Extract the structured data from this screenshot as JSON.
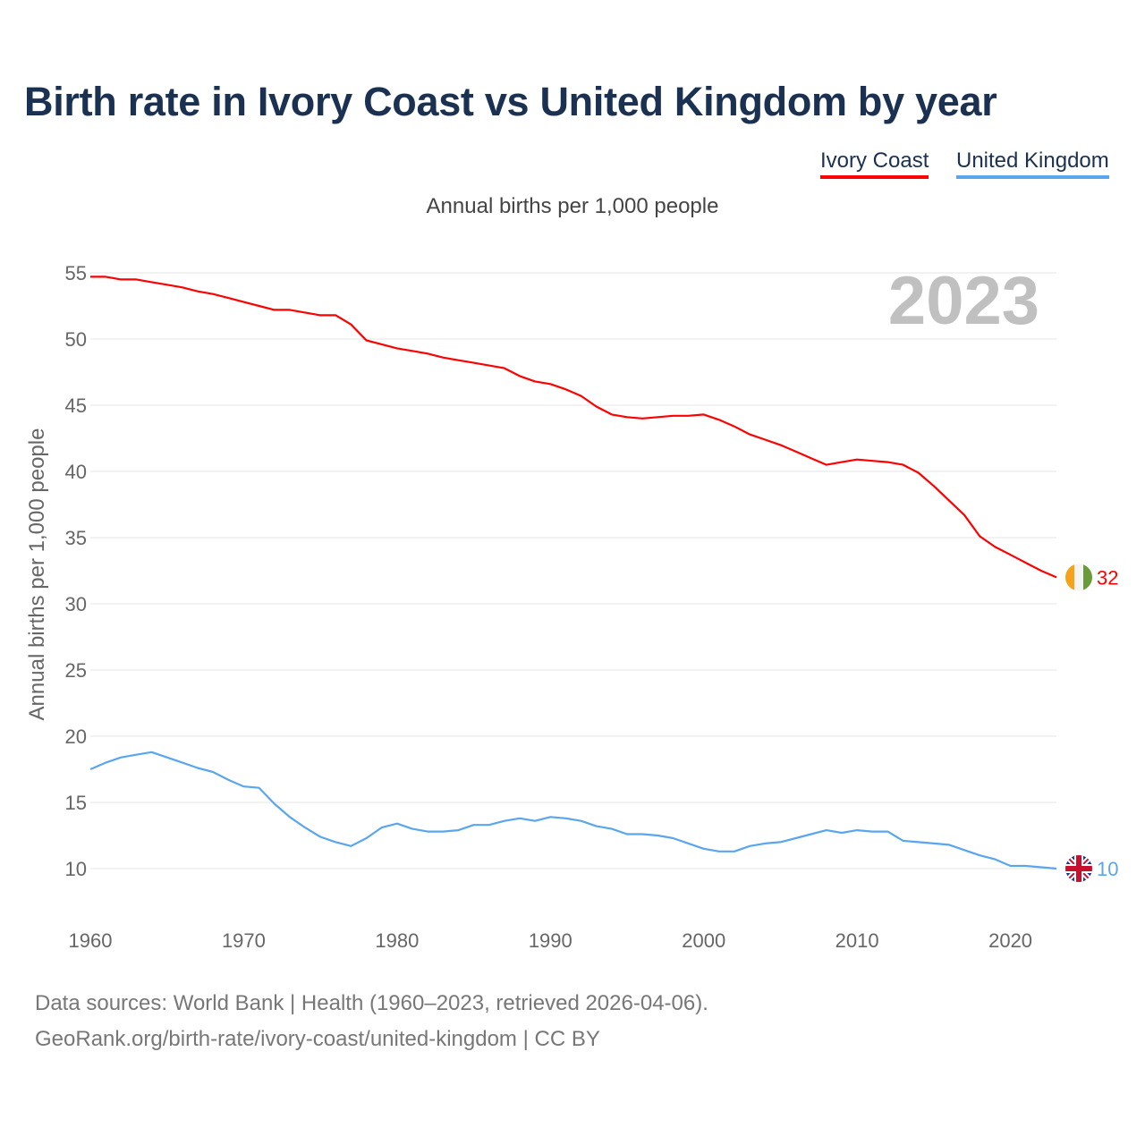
{
  "chart_data": {
    "type": "line",
    "title": "Birth rate in Ivory Coast vs United Kingdom by year",
    "subtitle": "Annual births per 1,000 people",
    "ylabel": "Annual births per 1,000 people",
    "xlabel": "",
    "year_label": "2023",
    "ylim": [
      7,
      57
    ],
    "xlim": [
      1960,
      2023
    ],
    "yticks": [
      10,
      15,
      20,
      25,
      30,
      35,
      40,
      45,
      50,
      55
    ],
    "xticks": [
      1960,
      1970,
      1980,
      1990,
      2000,
      2010,
      2020
    ],
    "grid": true,
    "legend_position": "top-right",
    "x": [
      1960,
      1961,
      1962,
      1963,
      1964,
      1965,
      1966,
      1967,
      1968,
      1969,
      1970,
      1971,
      1972,
      1973,
      1974,
      1975,
      1976,
      1977,
      1978,
      1979,
      1980,
      1981,
      1982,
      1983,
      1984,
      1985,
      1986,
      1987,
      1988,
      1989,
      1990,
      1991,
      1992,
      1993,
      1994,
      1995,
      1996,
      1997,
      1998,
      1999,
      2000,
      2001,
      2002,
      2003,
      2004,
      2005,
      2006,
      2007,
      2008,
      2009,
      2010,
      2011,
      2012,
      2013,
      2014,
      2015,
      2016,
      2017,
      2018,
      2019,
      2020,
      2021,
      2022,
      2023
    ],
    "series": [
      {
        "name": "Ivory Coast",
        "color": "#ff0000",
        "end_label": "32",
        "values": [
          54.7,
          54.7,
          54.5,
          54.5,
          54.3,
          54.1,
          53.9,
          53.6,
          53.4,
          53.1,
          52.8,
          52.5,
          52.2,
          52.2,
          52.0,
          51.8,
          51.8,
          51.1,
          49.9,
          49.6,
          49.3,
          49.1,
          48.9,
          48.6,
          48.4,
          48.2,
          48.0,
          47.8,
          47.2,
          46.8,
          46.6,
          46.2,
          45.7,
          44.9,
          44.3,
          44.1,
          44.0,
          44.1,
          44.2,
          44.2,
          44.3,
          43.9,
          43.4,
          42.8,
          42.4,
          42.0,
          41.5,
          41.0,
          40.5,
          40.7,
          40.9,
          40.8,
          40.7,
          40.5,
          39.9,
          38.9,
          37.8,
          36.7,
          35.1,
          34.3,
          33.7,
          33.1,
          32.5,
          32.0
        ]
      },
      {
        "name": "United Kingdom",
        "color": "#5aa6ee",
        "end_label": "10",
        "values": [
          17.5,
          18.0,
          18.4,
          18.6,
          18.8,
          18.4,
          18.0,
          17.6,
          17.3,
          16.7,
          16.2,
          16.1,
          14.9,
          13.9,
          13.1,
          12.4,
          12.0,
          11.7,
          12.3,
          13.1,
          13.4,
          13.0,
          12.8,
          12.8,
          12.9,
          13.3,
          13.3,
          13.6,
          13.8,
          13.6,
          13.9,
          13.8,
          13.6,
          13.2,
          13.0,
          12.6,
          12.6,
          12.5,
          12.3,
          11.9,
          11.5,
          11.3,
          11.3,
          11.7,
          11.9,
          12.0,
          12.3,
          12.6,
          12.9,
          12.7,
          12.9,
          12.8,
          12.8,
          12.1,
          12.0,
          11.9,
          11.8,
          11.4,
          11.0,
          10.7,
          10.2,
          10.2,
          10.1,
          10.0
        ]
      }
    ]
  },
  "footer": {
    "line1": "Data sources: World Bank | Health (1960–2023, retrieved 2026-04-06).",
    "line2": "GeoRank.org/birth-rate/ivory-coast/united-kingdom | CC BY"
  }
}
